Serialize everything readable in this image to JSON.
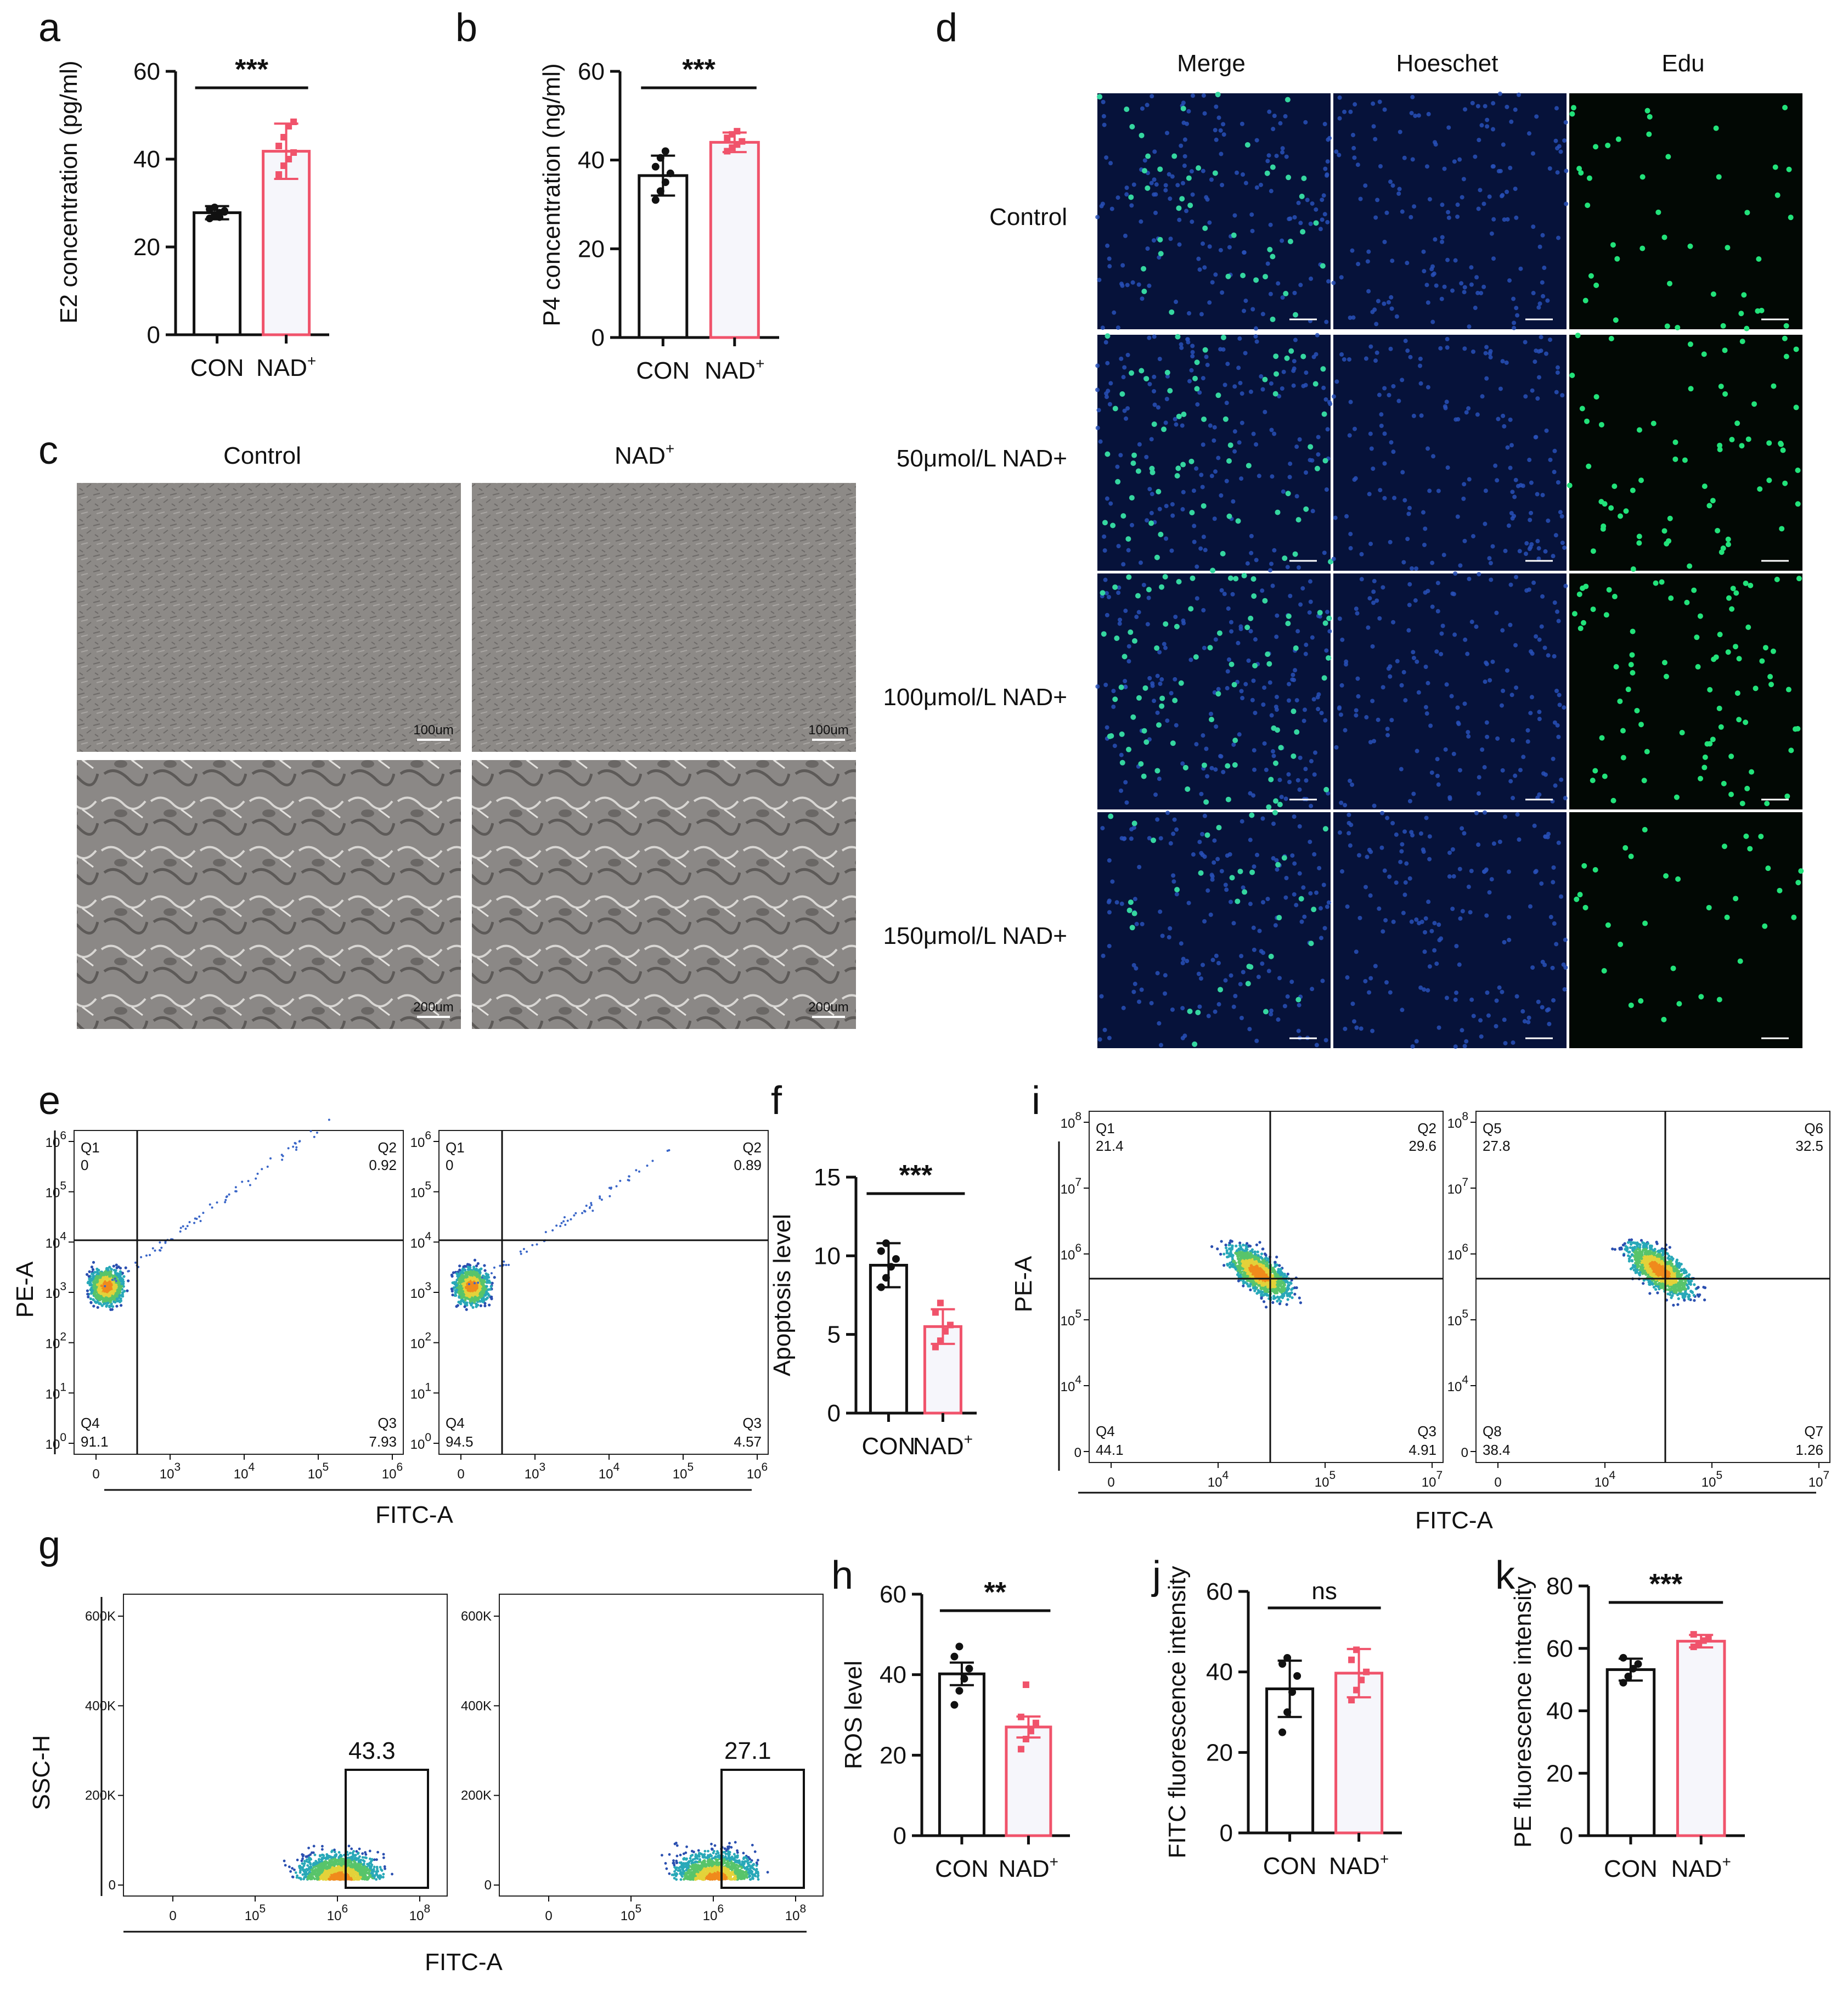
{
  "panel_letters": [
    "a",
    "b",
    "c",
    "d",
    "e",
    "f",
    "g",
    "h",
    "i",
    "j",
    "k"
  ],
  "colors": {
    "con": "#111111",
    "nad": "#f0536b",
    "nad_fill": "#f6f6fb",
    "fluo_blue": "#1b3b8f",
    "fluo_green": "#1fe07a",
    "phase_grey": "#8a8784"
  },
  "bar_charts": {
    "a": {
      "ylabel": "E2 concentration (pg/ml)",
      "categories": [
        "CON",
        "NAD"
      ],
      "sup": "+",
      "yticks": [
        "0",
        "20",
        "40",
        "60"
      ],
      "sig": "***"
    },
    "b": {
      "ylabel": "P4 concentration (ng/ml)",
      "categories": [
        "CON",
        "NAD"
      ],
      "sup": "+",
      "yticks": [
        "0",
        "20",
        "40",
        "60"
      ],
      "sig": "***"
    },
    "f": {
      "ylabel": "Apoptosis level",
      "categories": [
        "CON",
        "NAD"
      ],
      "sup": "+",
      "yticks": [
        "0",
        "5",
        "10",
        "15"
      ],
      "sig": "***"
    },
    "h": {
      "ylabel": "ROS level",
      "categories": [
        "CON",
        "NAD"
      ],
      "sup": "+",
      "yticks": [
        "0",
        "20",
        "40",
        "60"
      ],
      "sig": "**"
    },
    "j": {
      "ylabel": "FITC fluorescence intensity",
      "categories": [
        "CON",
        "NAD"
      ],
      "sup": "+",
      "yticks": [
        "0",
        "20",
        "40",
        "60"
      ],
      "sig": "ns"
    },
    "k": {
      "ylabel": "PE fluorescence intensity",
      "categories": [
        "CON",
        "NAD"
      ],
      "sup": "+",
      "yticks": [
        "0",
        "20",
        "40",
        "60",
        "80"
      ],
      "sig": "***"
    }
  },
  "panel_c": {
    "col_labels": [
      "Control",
      "NAD+"
    ],
    "scalebar_top": "100um",
    "scalebar_bottom": "200um"
  },
  "panel_d": {
    "col_labels": [
      "Merge",
      "Hoeschet",
      "Edu"
    ],
    "row_labels": [
      "Control",
      "50μmol/L NAD+",
      "100μmol/L NAD+",
      "150μmol/L NAD+"
    ]
  },
  "panel_e": {
    "xlabel": "FITC-A",
    "ylabel": "PE-A",
    "yticks": [
      "10^0",
      "10^1",
      "10^2",
      "10^3",
      "10^4",
      "10^5",
      "10^6"
    ],
    "xticks": [
      "0",
      "10^3",
      "10^4",
      "10^5",
      "10^6"
    ],
    "plots": [
      {
        "Q1": "Q1",
        "Q1v": "0",
        "Q2": "Q2",
        "Q2v": "0.92",
        "Q3": "Q3",
        "Q3v": "7.93",
        "Q4": "Q4",
        "Q4v": "91.1"
      },
      {
        "Q1": "Q1",
        "Q1v": "0",
        "Q2": "Q2",
        "Q2v": "0.89",
        "Q3": "Q3",
        "Q3v": "4.57",
        "Q4": "Q4",
        "Q4v": "94.5"
      }
    ]
  },
  "panel_i": {
    "xlabel": "FITC-A",
    "ylabel": "PE-A",
    "yticks": [
      "0",
      "10^4",
      "10^5",
      "10^6",
      "10^7",
      "10^8"
    ],
    "xticks": [
      "0",
      "10^4",
      "10^5",
      "10^7"
    ],
    "plots": [
      {
        "Q1": "Q1",
        "Q1v": "21.4",
        "Q2": "Q2",
        "Q2v": "29.6",
        "Q3": "Q3",
        "Q3v": "4.91",
        "Q4": "Q4",
        "Q4v": "44.1"
      },
      {
        "Q1": "Q5",
        "Q1v": "27.8",
        "Q2": "Q6",
        "Q2v": "32.5",
        "Q3": "Q7",
        "Q3v": "1.26",
        "Q4": "Q8",
        "Q4v": "38.4"
      }
    ]
  },
  "panel_g": {
    "xlabel": "FITC-A",
    "ylabel": "SSC-H",
    "yticks": [
      "0",
      "200K",
      "400K",
      "600K"
    ],
    "xticks": [
      "0",
      "10^5",
      "10^6",
      "10^8"
    ],
    "gates": [
      "43.3",
      "27.1"
    ]
  },
  "chart_data": [
    {
      "type": "bar",
      "panel": "a",
      "categories": [
        "CON",
        "NAD+"
      ],
      "values": [
        27.8,
        41.8
      ],
      "errors": [
        1.5,
        6.3
      ],
      "ylabel": "E2 concentration (pg/ml)",
      "ylim": [
        0,
        60
      ],
      "points": [
        [
          26.5,
          27.2,
          27.8,
          28.2,
          28.6,
          29.0,
          26.8,
          28.0
        ],
        [
          36.5,
          38.5,
          40.0,
          41.5,
          43.0,
          45.0,
          47.5,
          48.5
        ]
      ]
    },
    {
      "type": "bar",
      "panel": "b",
      "categories": [
        "CON",
        "NAD+"
      ],
      "values": [
        36.5,
        44.0
      ],
      "errors": [
        4.5,
        2.2
      ],
      "ylabel": "P4 concentration (ng/ml)",
      "ylim": [
        0,
        60
      ],
      "points": [
        [
          31.0,
          33.0,
          35.0,
          37.0,
          38.5,
          40.5,
          42.0
        ],
        [
          42.0,
          42.8,
          43.5,
          44.2,
          45.0,
          45.8,
          46.5
        ]
      ]
    },
    {
      "type": "bar",
      "panel": "f",
      "categories": [
        "CON",
        "NAD+"
      ],
      "values": [
        9.4,
        5.5
      ],
      "errors": [
        1.4,
        1.1
      ],
      "ylabel": "Apoptosis level",
      "ylim": [
        0,
        15
      ],
      "points": [
        [
          8.0,
          8.6,
          9.3,
          9.8,
          10.3,
          10.8
        ],
        [
          4.2,
          4.6,
          5.2,
          5.6,
          6.4,
          7.0
        ]
      ]
    },
    {
      "type": "bar",
      "panel": "h",
      "categories": [
        "CON",
        "NAD+"
      ],
      "values": [
        40.2,
        27.0
      ],
      "errors": [
        2.8,
        2.6
      ],
      "ylabel": "ROS level",
      "ylim": [
        0,
        60
      ],
      "points": [
        [
          32.5,
          36.0,
          39.0,
          41.5,
          44.5,
          47.0
        ],
        [
          21.5,
          24.0,
          26.0,
          28.0,
          29.5,
          37.5
        ]
      ]
    },
    {
      "type": "bar",
      "panel": "j",
      "categories": [
        "CON",
        "NAD+"
      ],
      "values": [
        35.8,
        39.7
      ],
      "errors": [
        7.0,
        6.0
      ],
      "ylabel": "FITC fluorescence intensity",
      "ylim": [
        0,
        60
      ],
      "points": [
        [
          25.0,
          30.0,
          35.0,
          39.0,
          42.0,
          43.5
        ],
        [
          33.0,
          35.5,
          38.0,
          40.0,
          43.0,
          45.5
        ]
      ]
    },
    {
      "type": "bar",
      "panel": "k",
      "categories": [
        "CON",
        "NAD+"
      ],
      "values": [
        53.2,
        62.3
      ],
      "errors": [
        3.5,
        2.0
      ],
      "ylabel": "PE fluorescence intensity",
      "ylim": [
        0,
        80
      ],
      "points": [
        [
          49.0,
          51.0,
          53.5,
          55.0,
          57.0
        ],
        [
          60.5,
          61.5,
          62.5,
          63.5,
          64.5
        ]
      ]
    }
  ]
}
